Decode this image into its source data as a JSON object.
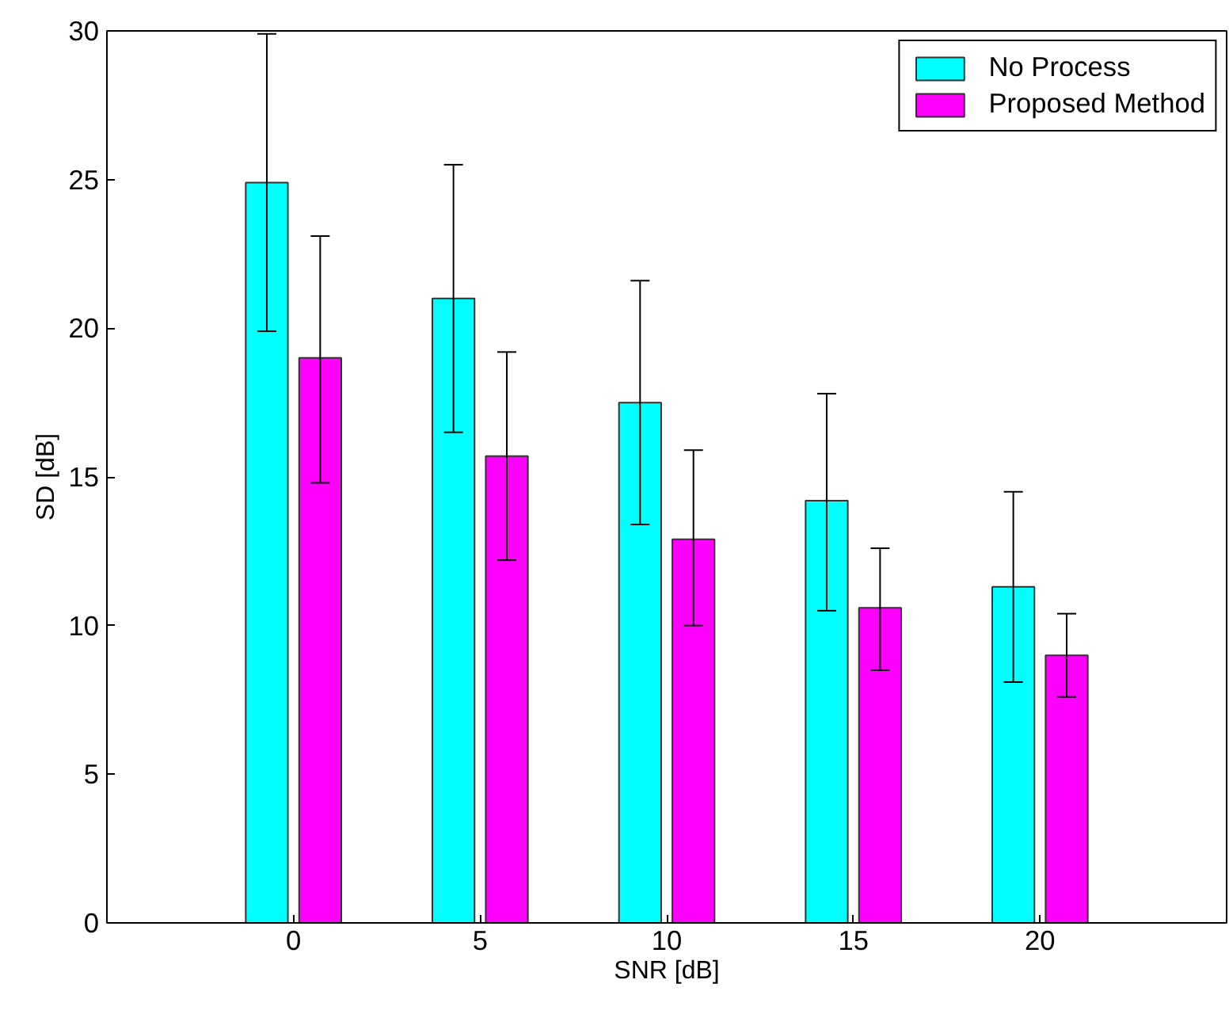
{
  "chart_data": {
    "type": "bar",
    "xlabel": "SNR [dB]",
    "ylabel": "SD [dB]",
    "x": [
      0,
      5,
      10,
      15,
      20
    ],
    "series": [
      {
        "name": "No Process",
        "color": "#00ffff",
        "values": [
          24.9,
          21.0,
          17.5,
          14.2,
          11.3
        ],
        "errors": [
          [
            19.9,
            29.9
          ],
          [
            16.5,
            25.5
          ],
          [
            13.4,
            21.6
          ],
          [
            10.5,
            17.8
          ],
          [
            8.1,
            14.5
          ]
        ]
      },
      {
        "name": "Proposed Method",
        "color": "#ff00ff",
        "values": [
          19.0,
          15.7,
          12.9,
          10.6,
          9.0
        ],
        "errors": [
          [
            14.8,
            23.1
          ],
          [
            12.2,
            19.2
          ],
          [
            10.0,
            15.9
          ],
          [
            8.5,
            12.6
          ],
          [
            7.6,
            10.4
          ]
        ]
      }
    ],
    "xlim": [
      -5,
      25
    ],
    "xticks": [
      0,
      5,
      10,
      15,
      20
    ],
    "ylim": [
      0,
      30
    ],
    "yticks": [
      0,
      5,
      10,
      15,
      20,
      25,
      30
    ],
    "grid": false,
    "legend": "top right"
  }
}
